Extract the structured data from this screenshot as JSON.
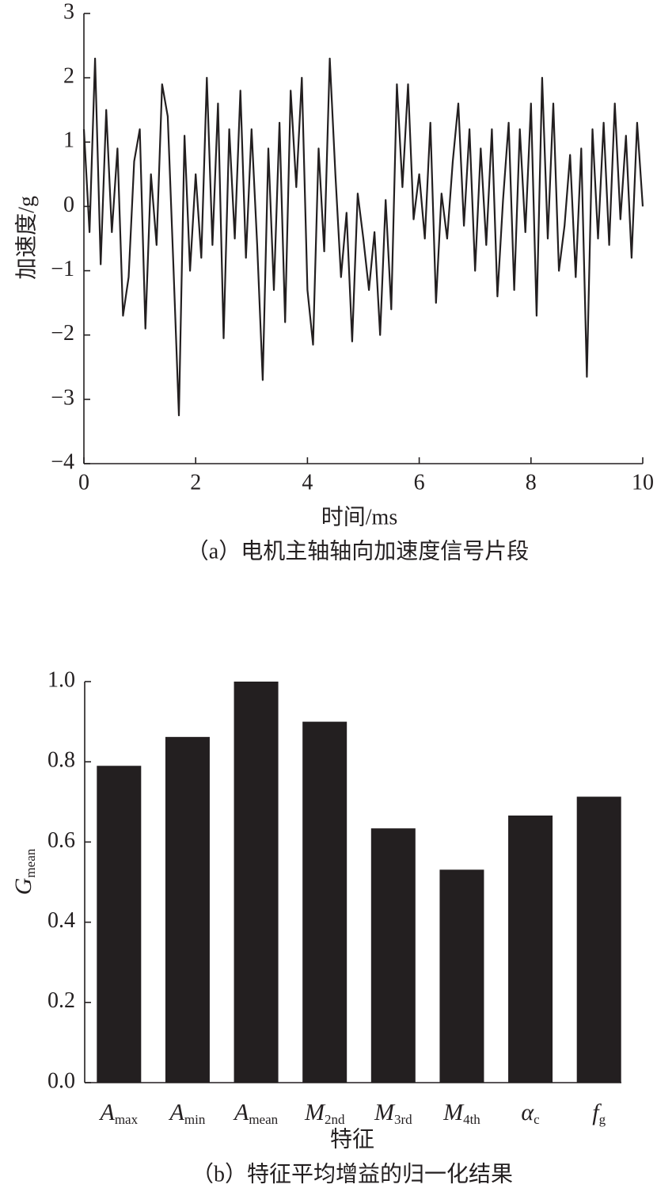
{
  "chart_data": [
    {
      "type": "line",
      "caption": "（a）电机主轴轴向加速度信号片段",
      "xlabel": "时间/ms",
      "ylabel": "加速度/g",
      "color": "#231f20",
      "x": [
        0,
        0.1,
        0.2,
        0.3,
        0.4,
        0.5,
        0.6,
        0.7,
        0.8,
        0.9,
        1.0,
        1.1,
        1.2,
        1.3,
        1.4,
        1.5,
        1.6,
        1.7,
        1.8,
        1.9,
        2.0,
        2.1,
        2.2,
        2.3,
        2.4,
        2.5,
        2.6,
        2.7,
        2.8,
        2.9,
        3.0,
        3.1,
        3.2,
        3.3,
        3.4,
        3.5,
        3.6,
        3.7,
        3.8,
        3.9,
        4.0,
        4.1,
        4.2,
        4.3,
        4.4,
        4.5,
        4.6,
        4.7,
        4.8,
        4.9,
        5.0,
        5.1,
        5.2,
        5.3,
        5.4,
        5.5,
        5.6,
        5.7,
        5.8,
        5.9,
        6.0,
        6.1,
        6.2,
        6.3,
        6.4,
        6.5,
        6.6,
        6.7,
        6.8,
        6.9,
        7.0,
        7.1,
        7.2,
        7.3,
        7.4,
        7.5,
        7.6,
        7.7,
        7.8,
        7.9,
        8.0,
        8.1,
        8.2,
        8.3,
        8.4,
        8.5,
        8.6,
        8.7,
        8.8,
        8.9,
        9.0,
        9.1,
        9.2,
        9.3,
        9.4,
        9.5,
        9.6,
        9.7,
        9.8,
        9.9,
        10.0
      ],
      "values": [
        1.2,
        -0.4,
        2.3,
        -0.9,
        1.5,
        -0.4,
        0.9,
        -1.7,
        -1.1,
        0.7,
        1.2,
        -1.9,
        0.5,
        -0.6,
        1.9,
        1.4,
        -0.9,
        -3.25,
        1.1,
        -1.0,
        0.5,
        -0.8,
        2.0,
        -0.6,
        1.6,
        -2.05,
        1.2,
        -0.5,
        1.8,
        -0.8,
        1.2,
        -0.6,
        -2.7,
        0.9,
        -1.3,
        1.3,
        -1.8,
        1.8,
        0.3,
        2.0,
        -1.3,
        -2.15,
        0.9,
        -0.7,
        2.3,
        0.5,
        -1.1,
        -0.1,
        -2.1,
        0.2,
        -0.5,
        -1.3,
        -0.4,
        -2.0,
        0.1,
        -1.6,
        1.9,
        0.3,
        1.9,
        -0.2,
        0.5,
        -0.5,
        1.3,
        -1.5,
        0.2,
        -0.5,
        0.7,
        1.6,
        -0.3,
        1.2,
        -1.0,
        0.9,
        -0.6,
        1.2,
        -1.4,
        0.1,
        1.3,
        -1.3,
        1.2,
        -0.4,
        1.6,
        -1.7,
        2.0,
        -0.5,
        1.6,
        -1.0,
        -0.3,
        0.8,
        -1.1,
        0.9,
        -2.65,
        1.2,
        -0.5,
        1.3,
        -0.6,
        1.6,
        -0.2,
        1.1,
        -0.8,
        1.3,
        0.0
      ],
      "xlim": [
        0,
        10
      ],
      "xticks": [
        0,
        2,
        4,
        6,
        8,
        10
      ],
      "ylim": [
        -4,
        3
      ],
      "yticks": [
        {
          "value": -4,
          "label": "−4"
        },
        {
          "value": -3,
          "label": "−3"
        },
        {
          "value": -2,
          "label": "−2"
        },
        {
          "value": -1,
          "label": "−1"
        },
        0,
        1,
        2,
        3
      ]
    },
    {
      "type": "bar",
      "caption": "（b）特征平均增益的归一化结果",
      "xlabel": "特征",
      "ylabel": {
        "main": "G",
        "sub": "mean"
      },
      "color": "#231f20",
      "categories": [
        {
          "main": "A",
          "sub": "max"
        },
        {
          "main": "A",
          "sub": "min"
        },
        {
          "main": "A",
          "sub": "mean"
        },
        {
          "main": "M",
          "sub": "2nd"
        },
        {
          "main": "M",
          "sub": "3rd"
        },
        {
          "main": "M",
          "sub": "4th"
        },
        {
          "main": "α",
          "sub": "c"
        },
        {
          "main": "f",
          "sub": "g"
        }
      ],
      "values": [
        0.79,
        0.862,
        1.0,
        0.9,
        0.634,
        0.531,
        0.666,
        0.713
      ],
      "ylim": [
        0,
        1.0
      ],
      "yticks": [
        {
          "value": 0,
          "label": "0.0"
        },
        {
          "value": 0.2,
          "label": "0.2"
        },
        {
          "value": 0.4,
          "label": "0.4"
        },
        {
          "value": 0.6,
          "label": "0.6"
        },
        {
          "value": 0.8,
          "label": "0.8"
        },
        {
          "value": 1.0,
          "label": "1.0"
        }
      ]
    }
  ]
}
